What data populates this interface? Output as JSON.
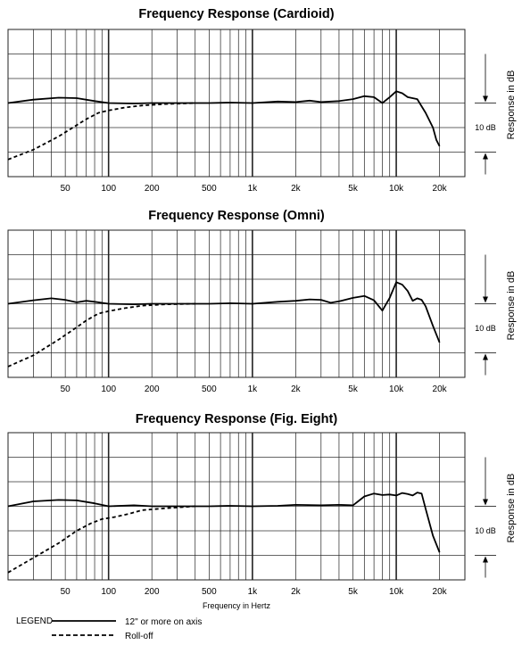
{
  "chart_data": [
    {
      "type": "line",
      "title": "Frequency Response (Cardioid)",
      "xscale": "log",
      "xlim": [
        20,
        30000
      ],
      "ylim": [
        -15,
        15
      ],
      "xticks": [
        {
          "v": 50,
          "label": "50"
        },
        {
          "v": 100,
          "label": "100"
        },
        {
          "v": 200,
          "label": "200"
        },
        {
          "v": 500,
          "label": "500"
        },
        {
          "v": 1000,
          "label": "1k"
        },
        {
          "v": 2000,
          "label": "2k"
        },
        {
          "v": 5000,
          "label": "5k"
        },
        {
          "v": 10000,
          "label": "10k"
        },
        {
          "v": 20000,
          "label": "20k"
        }
      ],
      "xlabel": "",
      "ylabel": "Response in dB",
      "scale_label": "10 dB",
      "grid": true,
      "series": [
        {
          "name": "12\" or more on axis",
          "style": "solid",
          "points": [
            [
              20,
              0
            ],
            [
              30,
              0.7
            ],
            [
              45,
              1.1
            ],
            [
              60,
              1.0
            ],
            [
              80,
              0.4
            ],
            [
              100,
              0
            ],
            [
              150,
              -0.1
            ],
            [
              200,
              0
            ],
            [
              300,
              0
            ],
            [
              500,
              0
            ],
            [
              700,
              0.1
            ],
            [
              1000,
              0
            ],
            [
              1500,
              0.3
            ],
            [
              2000,
              0.2
            ],
            [
              2500,
              0.5
            ],
            [
              3000,
              0.2
            ],
            [
              4000,
              0.4
            ],
            [
              5000,
              0.8
            ],
            [
              6000,
              1.4
            ],
            [
              7000,
              1.2
            ],
            [
              8000,
              0
            ],
            [
              9000,
              1.2
            ],
            [
              10000,
              2.4
            ],
            [
              11000,
              2.0
            ],
            [
              12000,
              1.2
            ],
            [
              14000,
              0.8
            ],
            [
              16000,
              -2
            ],
            [
              18000,
              -5
            ],
            [
              19000,
              -7.5
            ],
            [
              20000,
              -8.8
            ]
          ]
        },
        {
          "name": "Roll-off",
          "style": "dashed",
          "points": [
            [
              20,
              -11.5
            ],
            [
              30,
              -9.5
            ],
            [
              45,
              -6.8
            ],
            [
              60,
              -4.5
            ],
            [
              70,
              -3.3
            ],
            [
              85,
              -2
            ],
            [
              100,
              -1.5
            ],
            [
              130,
              -0.9
            ],
            [
              170,
              -0.5
            ],
            [
              250,
              -0.2
            ],
            [
              400,
              0
            ]
          ]
        }
      ]
    },
    {
      "type": "line",
      "title": "Frequency Response (Omni)",
      "xscale": "log",
      "xlim": [
        20,
        30000
      ],
      "ylim": [
        -15,
        15
      ],
      "xticks": [
        {
          "v": 50,
          "label": "50"
        },
        {
          "v": 100,
          "label": "100"
        },
        {
          "v": 200,
          "label": "200"
        },
        {
          "v": 500,
          "label": "500"
        },
        {
          "v": 1000,
          "label": "1k"
        },
        {
          "v": 2000,
          "label": "2k"
        },
        {
          "v": 5000,
          "label": "5k"
        },
        {
          "v": 10000,
          "label": "10k"
        },
        {
          "v": 20000,
          "label": "20k"
        }
      ],
      "xlabel": "",
      "ylabel": "Response in dB",
      "scale_label": "10 dB",
      "grid": true,
      "series": [
        {
          "name": "12\" or more on axis",
          "style": "solid",
          "points": [
            [
              20,
              0
            ],
            [
              30,
              0.7
            ],
            [
              40,
              1.1
            ],
            [
              50,
              0.8
            ],
            [
              60,
              0.3
            ],
            [
              70,
              0.6
            ],
            [
              80,
              0.4
            ],
            [
              100,
              0
            ],
            [
              150,
              -0.1
            ],
            [
              200,
              0
            ],
            [
              300,
              0
            ],
            [
              500,
              0
            ],
            [
              700,
              0.1
            ],
            [
              1000,
              0
            ],
            [
              1500,
              0.4
            ],
            [
              2000,
              0.6
            ],
            [
              2500,
              0.9
            ],
            [
              3000,
              0.8
            ],
            [
              3500,
              0.2
            ],
            [
              4000,
              0.5
            ],
            [
              5000,
              1.2
            ],
            [
              6000,
              1.6
            ],
            [
              7000,
              0.7
            ],
            [
              8000,
              -1.4
            ],
            [
              9000,
              1.2
            ],
            [
              10000,
              4.4
            ],
            [
              11000,
              3.9
            ],
            [
              12000,
              2.6
            ],
            [
              13000,
              0.6
            ],
            [
              14000,
              1.1
            ],
            [
              15000,
              0.8
            ],
            [
              16000,
              -0.5
            ],
            [
              18000,
              -4.5
            ],
            [
              20000,
              -7.9
            ]
          ]
        },
        {
          "name": "Roll-off",
          "style": "dashed",
          "points": [
            [
              20,
              -12.8
            ],
            [
              30,
              -10.5
            ],
            [
              45,
              -7.3
            ],
            [
              60,
              -4.8
            ],
            [
              70,
              -3.4
            ],
            [
              85,
              -2
            ],
            [
              100,
              -1.5
            ],
            [
              130,
              -0.9
            ],
            [
              170,
              -0.4
            ],
            [
              250,
              -0.1
            ],
            [
              400,
              0
            ]
          ]
        }
      ]
    },
    {
      "type": "line",
      "title": "Frequency Response (Fig. Eight)",
      "xscale": "log",
      "xlim": [
        20,
        30000
      ],
      "ylim": [
        -15,
        15
      ],
      "xticks": [
        {
          "v": 50,
          "label": "50"
        },
        {
          "v": 100,
          "label": "100"
        },
        {
          "v": 200,
          "label": "200"
        },
        {
          "v": 500,
          "label": "500"
        },
        {
          "v": 1000,
          "label": "1k"
        },
        {
          "v": 2000,
          "label": "2k"
        },
        {
          "v": 5000,
          "label": "5k"
        },
        {
          "v": 10000,
          "label": "10k"
        },
        {
          "v": 20000,
          "label": "20k"
        }
      ],
      "xlabel": "Frequency in Hertz",
      "ylabel": "Response in dB",
      "scale_label": "10 dB",
      "grid": true,
      "series": [
        {
          "name": "12\" or more on axis",
          "style": "solid",
          "points": [
            [
              20,
              0
            ],
            [
              30,
              1.0
            ],
            [
              45,
              1.3
            ],
            [
              60,
              1.2
            ],
            [
              80,
              0.6
            ],
            [
              100,
              0
            ],
            [
              150,
              0.2
            ],
            [
              200,
              0
            ],
            [
              300,
              0
            ],
            [
              500,
              0
            ],
            [
              700,
              0.1
            ],
            [
              1000,
              0
            ],
            [
              1500,
              0.1
            ],
            [
              2000,
              0.3
            ],
            [
              3000,
              0.2
            ],
            [
              4000,
              0.3
            ],
            [
              5000,
              0.2
            ],
            [
              6000,
              2.0
            ],
            [
              7000,
              2.6
            ],
            [
              8000,
              2.3
            ],
            [
              9000,
              2.4
            ],
            [
              10000,
              2.2
            ],
            [
              11000,
              2.7
            ],
            [
              12000,
              2.5
            ],
            [
              13000,
              2.2
            ],
            [
              14000,
              2.8
            ],
            [
              15000,
              2.6
            ],
            [
              16000,
              -0.5
            ],
            [
              18000,
              -6
            ],
            [
              20000,
              -9.4
            ]
          ]
        },
        {
          "name": "Roll-off",
          "style": "dashed",
          "points": [
            [
              20,
              -13.5
            ],
            [
              30,
              -10.5
            ],
            [
              45,
              -7.5
            ],
            [
              60,
              -5
            ],
            [
              75,
              -3.5
            ],
            [
              90,
              -2.6
            ],
            [
              110,
              -2.2
            ],
            [
              140,
              -1.5
            ],
            [
              170,
              -0.8
            ],
            [
              250,
              -0.4
            ],
            [
              400,
              0
            ]
          ]
        }
      ]
    }
  ],
  "legend": {
    "title": "LEGEND",
    "items": [
      {
        "label": "12\" or more on axis",
        "style": "solid"
      },
      {
        "label": "Roll-off",
        "style": "dashed"
      }
    ]
  }
}
